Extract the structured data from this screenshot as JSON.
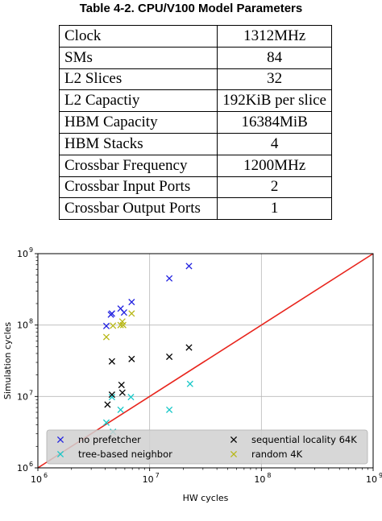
{
  "table": {
    "caption": "Table 4-2. CPU/V100 Model Parameters",
    "rows": [
      {
        "key": "Clock",
        "value": "1312MHz"
      },
      {
        "key": "SMs",
        "value": "84"
      },
      {
        "key": "L2 Slices",
        "value": "32"
      },
      {
        "key": "L2 Capactiy",
        "value": "192KiB per slice"
      },
      {
        "key": "HBM Capacity",
        "value": "16384MiB"
      },
      {
        "key": "HBM Stacks",
        "value": "4"
      },
      {
        "key": "Crossbar Frequency",
        "value": "1200MHz"
      },
      {
        "key": "Crossbar Input Ports",
        "value": "2"
      },
      {
        "key": "Crossbar Output Ports",
        "value": "1"
      }
    ]
  },
  "chart_data": {
    "type": "scatter",
    "xlabel": "HW cycles",
    "ylabel": "Simulation cycles",
    "x_scale": "log",
    "y_scale": "log",
    "xlim": [
      1000000,
      1000000000
    ],
    "ylim": [
      1000000,
      1000000000
    ],
    "x_ticks": [
      {
        "base": "10",
        "exp": "6"
      },
      {
        "base": "10",
        "exp": "7"
      },
      {
        "base": "10",
        "exp": "8"
      },
      {
        "base": "10",
        "exp": "9"
      }
    ],
    "y_ticks": [
      {
        "base": "10",
        "exp": "6"
      },
      {
        "base": "10",
        "exp": "7"
      },
      {
        "base": "10",
        "exp": "8"
      },
      {
        "base": "10",
        "exp": "9"
      }
    ],
    "grid": true,
    "legend_position": "bottom",
    "reference_line": {
      "color": "#e8241c",
      "from": [
        1000000,
        1000000
      ],
      "to": [
        1000000000,
        1000000000
      ]
    },
    "series": [
      {
        "name": "no prefetcher",
        "color": "#2020e0",
        "marker": "x",
        "points": [
          [
            4100000,
            97000000
          ],
          [
            4500000,
            140000000
          ],
          [
            4600000,
            145000000
          ],
          [
            5500000,
            170000000
          ],
          [
            5900000,
            150000000
          ],
          [
            6900000,
            210000000
          ],
          [
            15000000,
            450000000
          ],
          [
            22500000,
            670000000
          ]
        ]
      },
      {
        "name": "tree-based neighbor",
        "color": "#18c8c8",
        "marker": "x",
        "points": [
          [
            4100000,
            4300000
          ],
          [
            4700000,
            3200000
          ],
          [
            4600000,
            9800000
          ],
          [
            5500000,
            6500000
          ],
          [
            6800000,
            9800000
          ],
          [
            15000000,
            6500000
          ],
          [
            23000000,
            15000000
          ]
        ]
      },
      {
        "name": "sequential locality 64K",
        "color": "#000000",
        "marker": "x",
        "points": [
          [
            4200000,
            7700000
          ],
          [
            4600000,
            10600000
          ],
          [
            4600000,
            31000000
          ],
          [
            5600000,
            14500000
          ],
          [
            5700000,
            11300000
          ],
          [
            6900000,
            33500000
          ],
          [
            15000000,
            36000000
          ],
          [
            22500000,
            48500000
          ]
        ]
      },
      {
        "name": "random 4K",
        "color": "#b8b818",
        "marker": "x",
        "points": [
          [
            4100000,
            68000000
          ],
          [
            4700000,
            98000000
          ],
          [
            5500000,
            100000000
          ],
          [
            5700000,
            112000000
          ],
          [
            5800000,
            100000000
          ],
          [
            6900000,
            145000000
          ]
        ]
      }
    ]
  }
}
